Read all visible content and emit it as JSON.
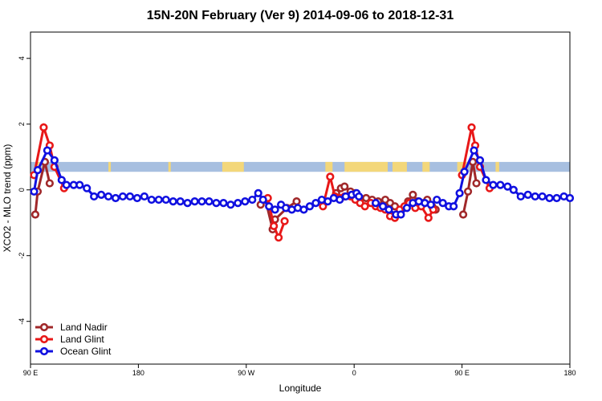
{
  "chart_data": {
    "type": "line",
    "title": "15N-20N February (Ver 9)   2014-09-06 to 2018-12-31",
    "xlabel": "Longitude",
    "ylabel": "XCO2 - MLO trend (ppm)",
    "x_ticks": [
      {
        "value": 90,
        "label": "90 E"
      },
      {
        "value": 180,
        "label": "180"
      },
      {
        "value": 270,
        "label": "90 W"
      },
      {
        "value": 360,
        "label": "0"
      },
      {
        "value": 450,
        "label": "90 E"
      },
      {
        "value": 540,
        "label": "180"
      }
    ],
    "y_ticks": [
      -4,
      -2,
      0,
      2,
      4
    ],
    "xlim": [
      90,
      540
    ],
    "ylim": [
      -5.3,
      4.8
    ],
    "band": {
      "y_low": 0.55,
      "y_high": 0.85,
      "ocean_color": "#a7bfe0",
      "land_color": "#f3d77a",
      "land_ranges": [
        [
          94,
          99
        ],
        [
          155,
          157
        ],
        [
          205,
          207
        ],
        [
          250,
          268
        ],
        [
          336,
          342
        ],
        [
          352,
          388
        ],
        [
          392,
          404
        ],
        [
          417,
          423
        ],
        [
          446,
          455
        ],
        [
          478,
          481
        ]
      ]
    },
    "legend": {
      "position": "bottom-left"
    },
    "series": [
      {
        "name": "Land Nadir",
        "color": "#a0282a",
        "points": [
          [
            94,
            -0.75
          ],
          [
            96,
            -0.05
          ],
          [
            102,
            0.85
          ],
          [
            106,
            0.2
          ],
          [
            282,
            -0.45
          ],
          [
            286,
            -0.3
          ],
          [
            292,
            -1.2
          ],
          [
            294,
            -0.9
          ],
          [
            304,
            -0.55
          ],
          [
            312,
            -0.35
          ],
          [
            345,
            -0.1
          ],
          [
            349,
            0.05
          ],
          [
            352,
            0.1
          ],
          [
            357,
            -0.05
          ],
          [
            361,
            -0.1
          ],
          [
            365,
            -0.25
          ],
          [
            370,
            -0.25
          ],
          [
            375,
            -0.3
          ],
          [
            380,
            -0.35
          ],
          [
            386,
            -0.3
          ],
          [
            390,
            -0.4
          ],
          [
            394,
            -0.5
          ],
          [
            402,
            -0.55
          ],
          [
            405,
            -0.35
          ],
          [
            409,
            -0.15
          ],
          [
            413,
            -0.35
          ],
          [
            418,
            -0.4
          ],
          [
            421,
            -0.3
          ],
          [
            425,
            -0.5
          ],
          [
            428,
            -0.6
          ],
          [
            451,
            -0.75
          ],
          [
            455,
            -0.05
          ],
          [
            459,
            0.85
          ],
          [
            462,
            0.2
          ]
        ]
      },
      {
        "name": "Land Glint",
        "color": "#e81818",
        "points": [
          [
            93,
            0.45
          ],
          [
            101,
            1.9
          ],
          [
            106,
            1.35
          ],
          [
            110,
            0.7
          ],
          [
            118,
            0.05
          ],
          [
            288,
            -0.25
          ],
          [
            293,
            -1.1
          ],
          [
            297,
            -1.45
          ],
          [
            302,
            -0.95
          ],
          [
            334,
            -0.5
          ],
          [
            340,
            0.4
          ],
          [
            344,
            -0.2
          ],
          [
            348,
            -0.25
          ],
          [
            352,
            -0.2
          ],
          [
            357,
            -0.2
          ],
          [
            361,
            -0.3
          ],
          [
            365,
            -0.4
          ],
          [
            369,
            -0.5
          ],
          [
            374,
            -0.4
          ],
          [
            378,
            -0.5
          ],
          [
            382,
            -0.55
          ],
          [
            386,
            -0.6
          ],
          [
            390,
            -0.8
          ],
          [
            394,
            -0.85
          ],
          [
            398,
            -0.6
          ],
          [
            402,
            -0.5
          ],
          [
            406,
            -0.4
          ],
          [
            411,
            -0.55
          ],
          [
            416,
            -0.5
          ],
          [
            422,
            -0.85
          ],
          [
            426,
            -0.6
          ],
          [
            450,
            0.45
          ],
          [
            458,
            1.9
          ],
          [
            461,
            1.35
          ],
          [
            465,
            0.7
          ],
          [
            473,
            0.05
          ]
        ]
      },
      {
        "name": "Ocean Glint",
        "color": "#1010e0",
        "points": [
          [
            93,
            -0.05
          ],
          [
            96,
            0.6
          ],
          [
            104,
            1.2
          ],
          [
            110,
            0.9
          ],
          [
            116,
            0.3
          ],
          [
            120,
            0.15
          ],
          [
            126,
            0.15
          ],
          [
            131,
            0.15
          ],
          [
            137,
            0.05
          ],
          [
            143,
            -0.2
          ],
          [
            149,
            -0.15
          ],
          [
            155,
            -0.2
          ],
          [
            161,
            -0.25
          ],
          [
            167,
            -0.2
          ],
          [
            173,
            -0.2
          ],
          [
            179,
            -0.25
          ],
          [
            185,
            -0.2
          ],
          [
            191,
            -0.3
          ],
          [
            197,
            -0.3
          ],
          [
            203,
            -0.3
          ],
          [
            209,
            -0.35
          ],
          [
            215,
            -0.35
          ],
          [
            221,
            -0.4
          ],
          [
            227,
            -0.35
          ],
          [
            233,
            -0.35
          ],
          [
            239,
            -0.35
          ],
          [
            245,
            -0.4
          ],
          [
            251,
            -0.4
          ],
          [
            257,
            -0.45
          ],
          [
            263,
            -0.4
          ],
          [
            269,
            -0.35
          ],
          [
            275,
            -0.3
          ],
          [
            280,
            -0.1
          ],
          [
            284,
            -0.3
          ],
          [
            289,
            -0.5
          ],
          [
            294,
            -0.6
          ],
          [
            299,
            -0.45
          ],
          [
            303,
            -0.55
          ],
          [
            308,
            -0.6
          ],
          [
            313,
            -0.55
          ],
          [
            318,
            -0.6
          ],
          [
            323,
            -0.5
          ],
          [
            328,
            -0.4
          ],
          [
            333,
            -0.3
          ],
          [
            338,
            -0.35
          ],
          [
            343,
            -0.25
          ],
          [
            348,
            -0.3
          ],
          [
            353,
            -0.2
          ],
          [
            358,
            -0.15
          ],
          [
            362,
            -0.1
          ],
          [
            364,
            -0.2
          ],
          [
            378,
            -0.4
          ],
          [
            384,
            -0.5
          ],
          [
            389,
            -0.6
          ],
          [
            395,
            -0.75
          ],
          [
            399,
            -0.75
          ],
          [
            404,
            -0.55
          ],
          [
            409,
            -0.4
          ],
          [
            414,
            -0.35
          ],
          [
            419,
            -0.4
          ],
          [
            424,
            -0.45
          ],
          [
            429,
            -0.3
          ],
          [
            434,
            -0.4
          ],
          [
            439,
            -0.5
          ],
          [
            443,
            -0.5
          ],
          [
            448,
            -0.1
          ],
          [
            452,
            0.55
          ],
          [
            460,
            1.2
          ],
          [
            465,
            0.9
          ],
          [
            470,
            0.3
          ],
          [
            476,
            0.15
          ],
          [
            482,
            0.15
          ],
          [
            488,
            0.1
          ],
          [
            493,
            0.0
          ],
          [
            499,
            -0.2
          ],
          [
            505,
            -0.15
          ],
          [
            511,
            -0.2
          ],
          [
            517,
            -0.2
          ],
          [
            523,
            -0.25
          ],
          [
            529,
            -0.25
          ],
          [
            535,
            -0.2
          ],
          [
            540,
            -0.25
          ]
        ]
      }
    ]
  }
}
